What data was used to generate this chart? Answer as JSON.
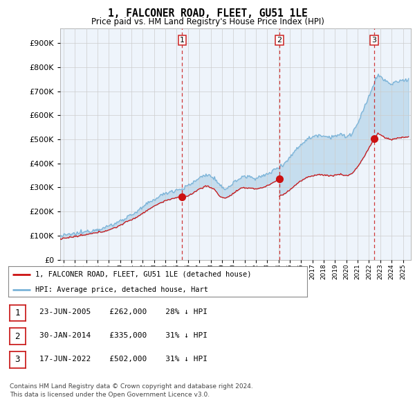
{
  "title": "1, FALCONER ROAD, FLEET, GU51 1LE",
  "subtitle": "Price paid vs. HM Land Registry's House Price Index (HPI)",
  "ytick_values": [
    0,
    100000,
    200000,
    300000,
    400000,
    500000,
    600000,
    700000,
    800000,
    900000
  ],
  "ylim": [
    0,
    960000
  ],
  "xlim_start": 1994.7,
  "xlim_end": 2025.7,
  "sale_dates": [
    2005.48,
    2014.08,
    2022.46
  ],
  "sale_prices": [
    262000,
    335000,
    502000
  ],
  "sale_labels": [
    "1",
    "2",
    "3"
  ],
  "vline_color": "#cc2222",
  "sale_color": "#cc1111",
  "hpi_color": "#7ab3d8",
  "legend_entry1": "1, FALCONER ROAD, FLEET, GU51 1LE (detached house)",
  "legend_entry2": "HPI: Average price, detached house, Hart",
  "table_rows": [
    {
      "num": "1",
      "date": "23-JUN-2005",
      "price": "£262,000",
      "hpi": "28% ↓ HPI"
    },
    {
      "num": "2",
      "date": "30-JAN-2014",
      "price": "£335,000",
      "hpi": "31% ↓ HPI"
    },
    {
      "num": "3",
      "date": "17-JUN-2022",
      "price": "£502,000",
      "hpi": "31% ↓ HPI"
    }
  ],
  "footnote1": "Contains HM Land Registry data © Crown copyright and database right 2024.",
  "footnote2": "This data is licensed under the Open Government Licence v3.0.",
  "background_color": "#ffffff",
  "plot_bg_color": "#eef4fb",
  "grid_color": "#cccccc",
  "fill_alpha": 0.35
}
